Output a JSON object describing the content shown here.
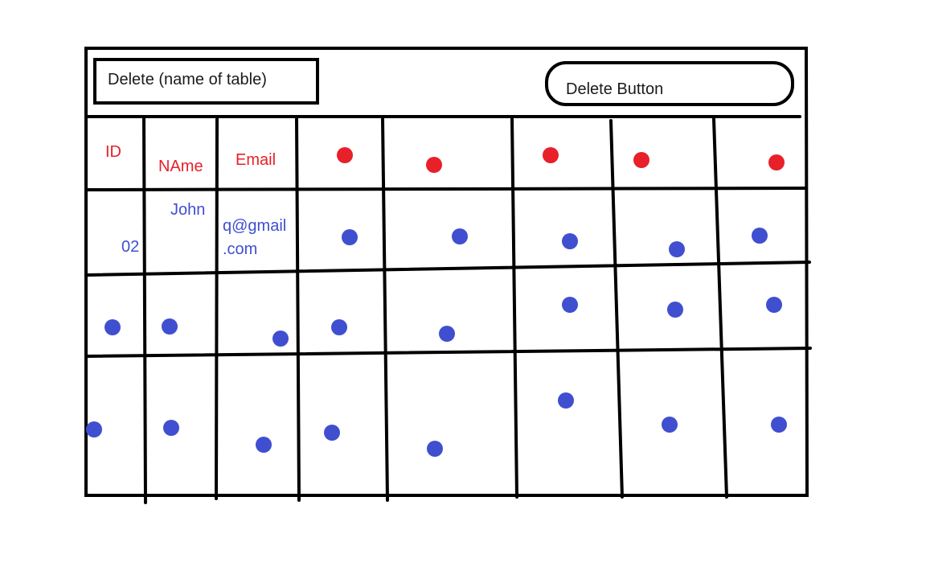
{
  "title_box": {
    "text": "Delete (name of table)"
  },
  "delete_button": {
    "label": "Delete Button"
  },
  "table": {
    "headers": [
      "ID",
      "NAme",
      "Email"
    ],
    "first_row": {
      "id": "02",
      "name": "John",
      "email_line1": "q@gmail",
      "email_line2": ".com"
    }
  },
  "colors": {
    "header_text": "#e8202a",
    "header_dot": "#e8202a",
    "row_text": "#3f4fd0",
    "row_dot": "#3f4fd0",
    "ink": "#000000"
  }
}
